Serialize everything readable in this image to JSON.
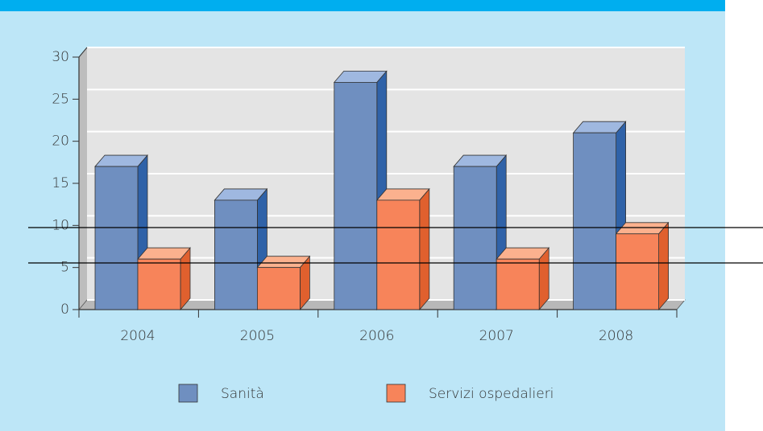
{
  "chart_data": {
    "type": "bar3d",
    "categories": [
      "2004",
      "2005",
      "2006",
      "2007",
      "2008"
    ],
    "series": [
      {
        "name": "Sanità",
        "color": "#6f8fc0",
        "values": [
          17,
          13,
          27,
          17,
          21
        ]
      },
      {
        "name": "Servizi ospedalieri",
        "color": "#f7845a",
        "values": [
          6,
          5,
          13,
          6,
          9
        ]
      }
    ],
    "ylim": [
      0,
      30
    ],
    "yticks": [
      0,
      5,
      10,
      15,
      20,
      25,
      30
    ],
    "grid": true
  }
}
